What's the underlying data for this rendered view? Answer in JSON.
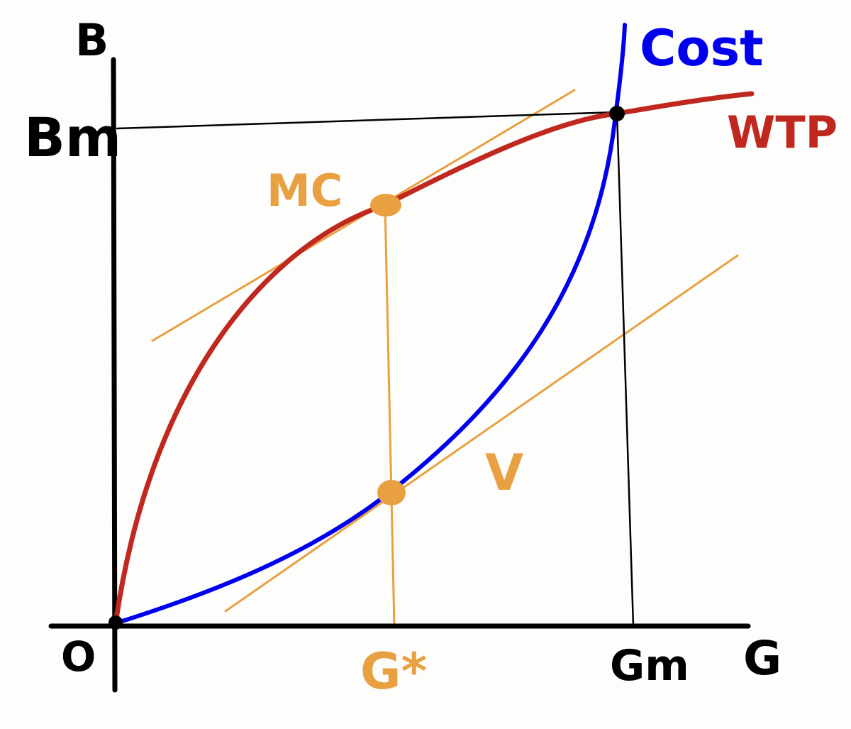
{
  "labels": {
    "y_axis": "B",
    "x_axis": "G",
    "origin": "O",
    "b_max": "Bm",
    "g_max": "Gm",
    "g_star": "G*",
    "mc": "MC",
    "v": "V",
    "cost": "Cost",
    "wtp": "WTP"
  },
  "colors": {
    "axis": "#000000",
    "cost_curve": "#0000ee",
    "wtp_curve": "#c0281f",
    "tangent": "#e8a041",
    "guide_line": "#000000"
  }
}
